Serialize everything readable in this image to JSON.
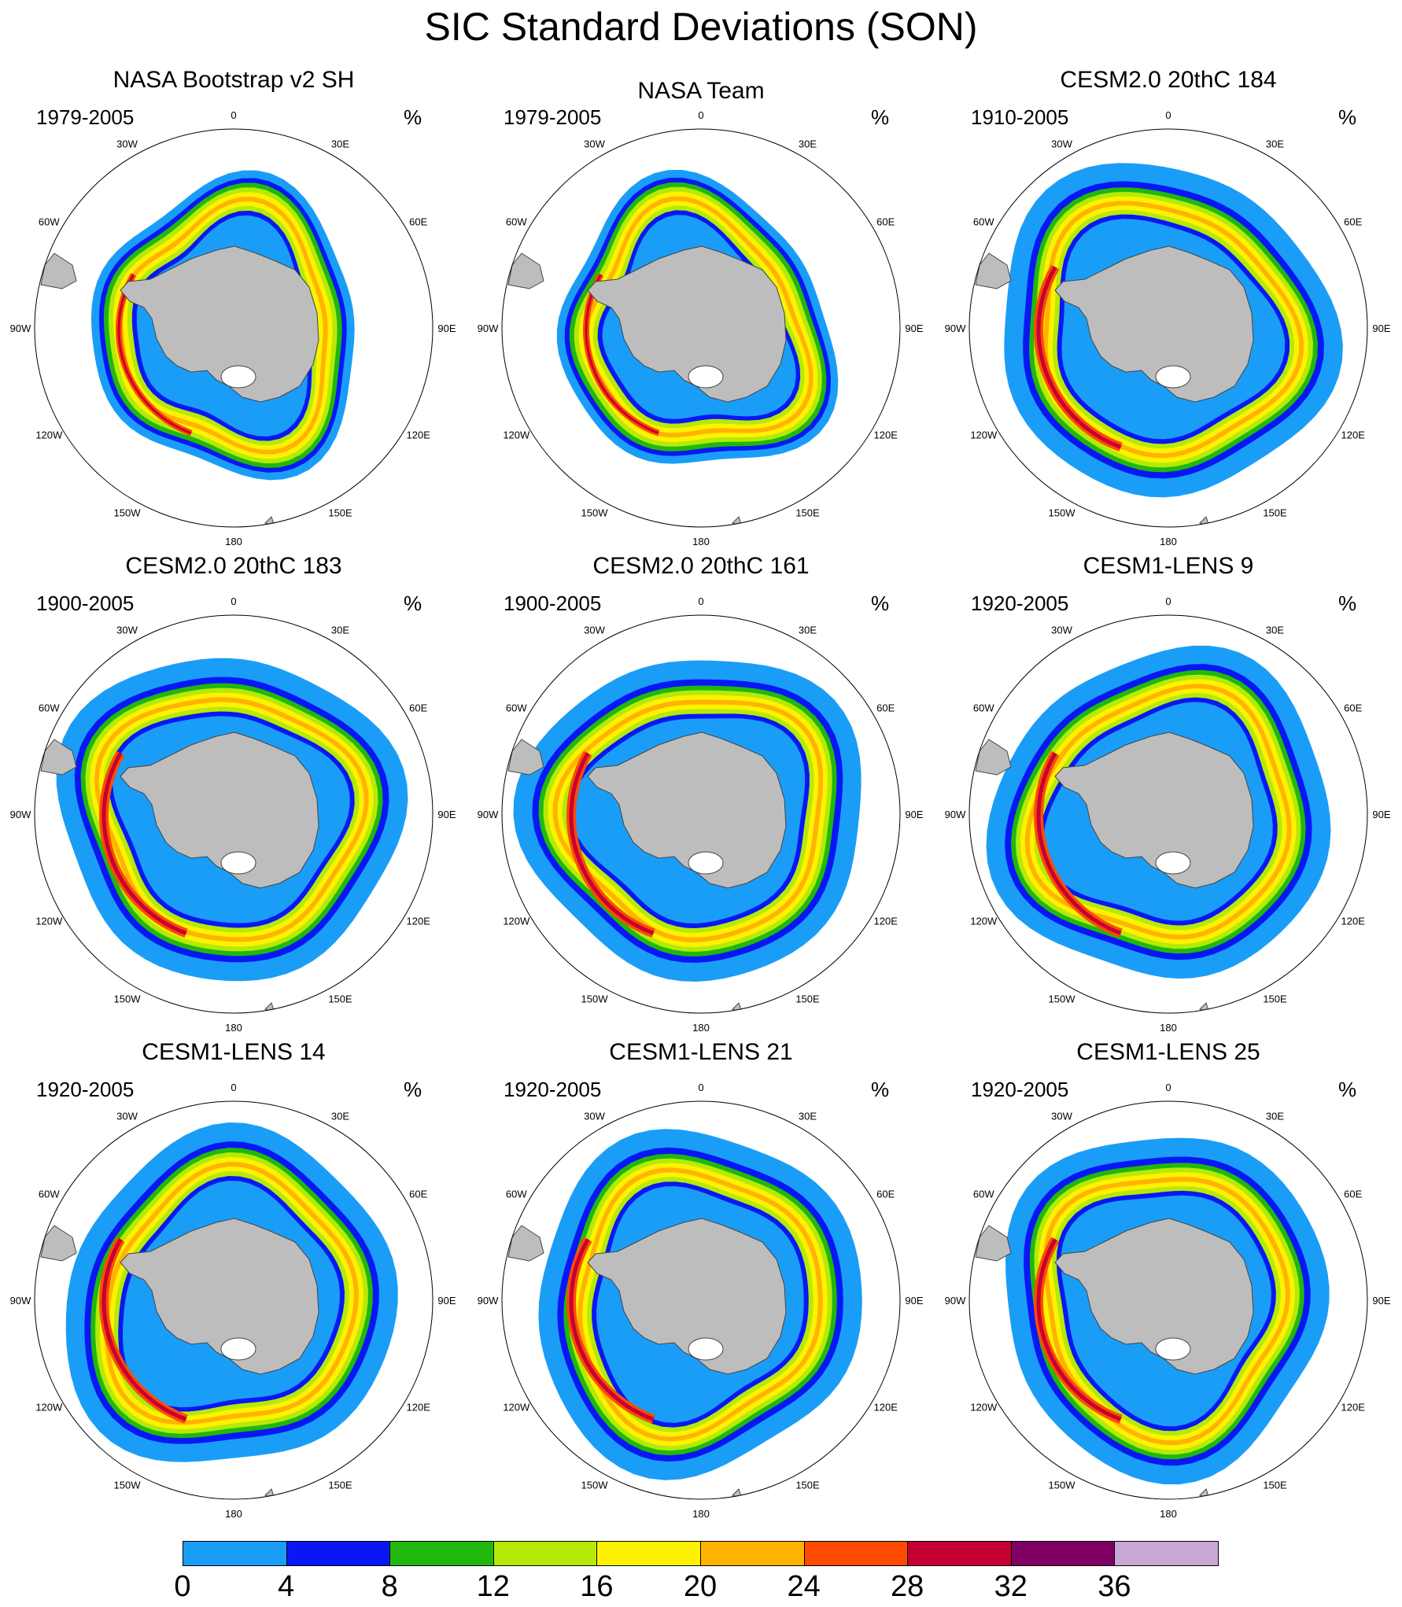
{
  "title": "SIC Standard Deviations (SON)",
  "unit": "%",
  "longitude_labels": [
    "0",
    "30E",
    "60E",
    "90E",
    "120E",
    "150E",
    "180",
    "150W",
    "120W",
    "90W",
    "60W",
    "30W"
  ],
  "colors": {
    "land": "#bdbdbd",
    "open_ocean": "#ffffff",
    "legend_bins": [
      "#1a9df7",
      "#0a17f5",
      "#21b80d",
      "#b5ea08",
      "#fff200",
      "#ffb300",
      "#ff4b00",
      "#c40034",
      "#800064",
      "#c9a8d6"
    ]
  },
  "colorbar": {
    "labels": [
      "0",
      "4",
      "8",
      "12",
      "16",
      "20",
      "24",
      "28",
      "32",
      "36"
    ]
  },
  "panels": [
    {
      "title": "NASA Bootstrap v2 SH",
      "period": "1979-2005"
    },
    {
      "title": "NASA Team",
      "period": "1979-2005"
    },
    {
      "title": "CESM2.0 20thC 184",
      "period": "1910-2005"
    },
    {
      "title": "CESM2.0 20thC 183",
      "period": "1900-2005"
    },
    {
      "title": "CESM2.0 20thC 161",
      "period": "1900-2005"
    },
    {
      "title": "CESM1-LENS 9",
      "period": "1920-2005"
    },
    {
      "title": "CESM1-LENS 14",
      "period": "1920-2005"
    },
    {
      "title": "CESM1-LENS 21",
      "period": "1920-2005"
    },
    {
      "title": "CESM1-LENS 25",
      "period": "1920-2005"
    }
  ]
}
